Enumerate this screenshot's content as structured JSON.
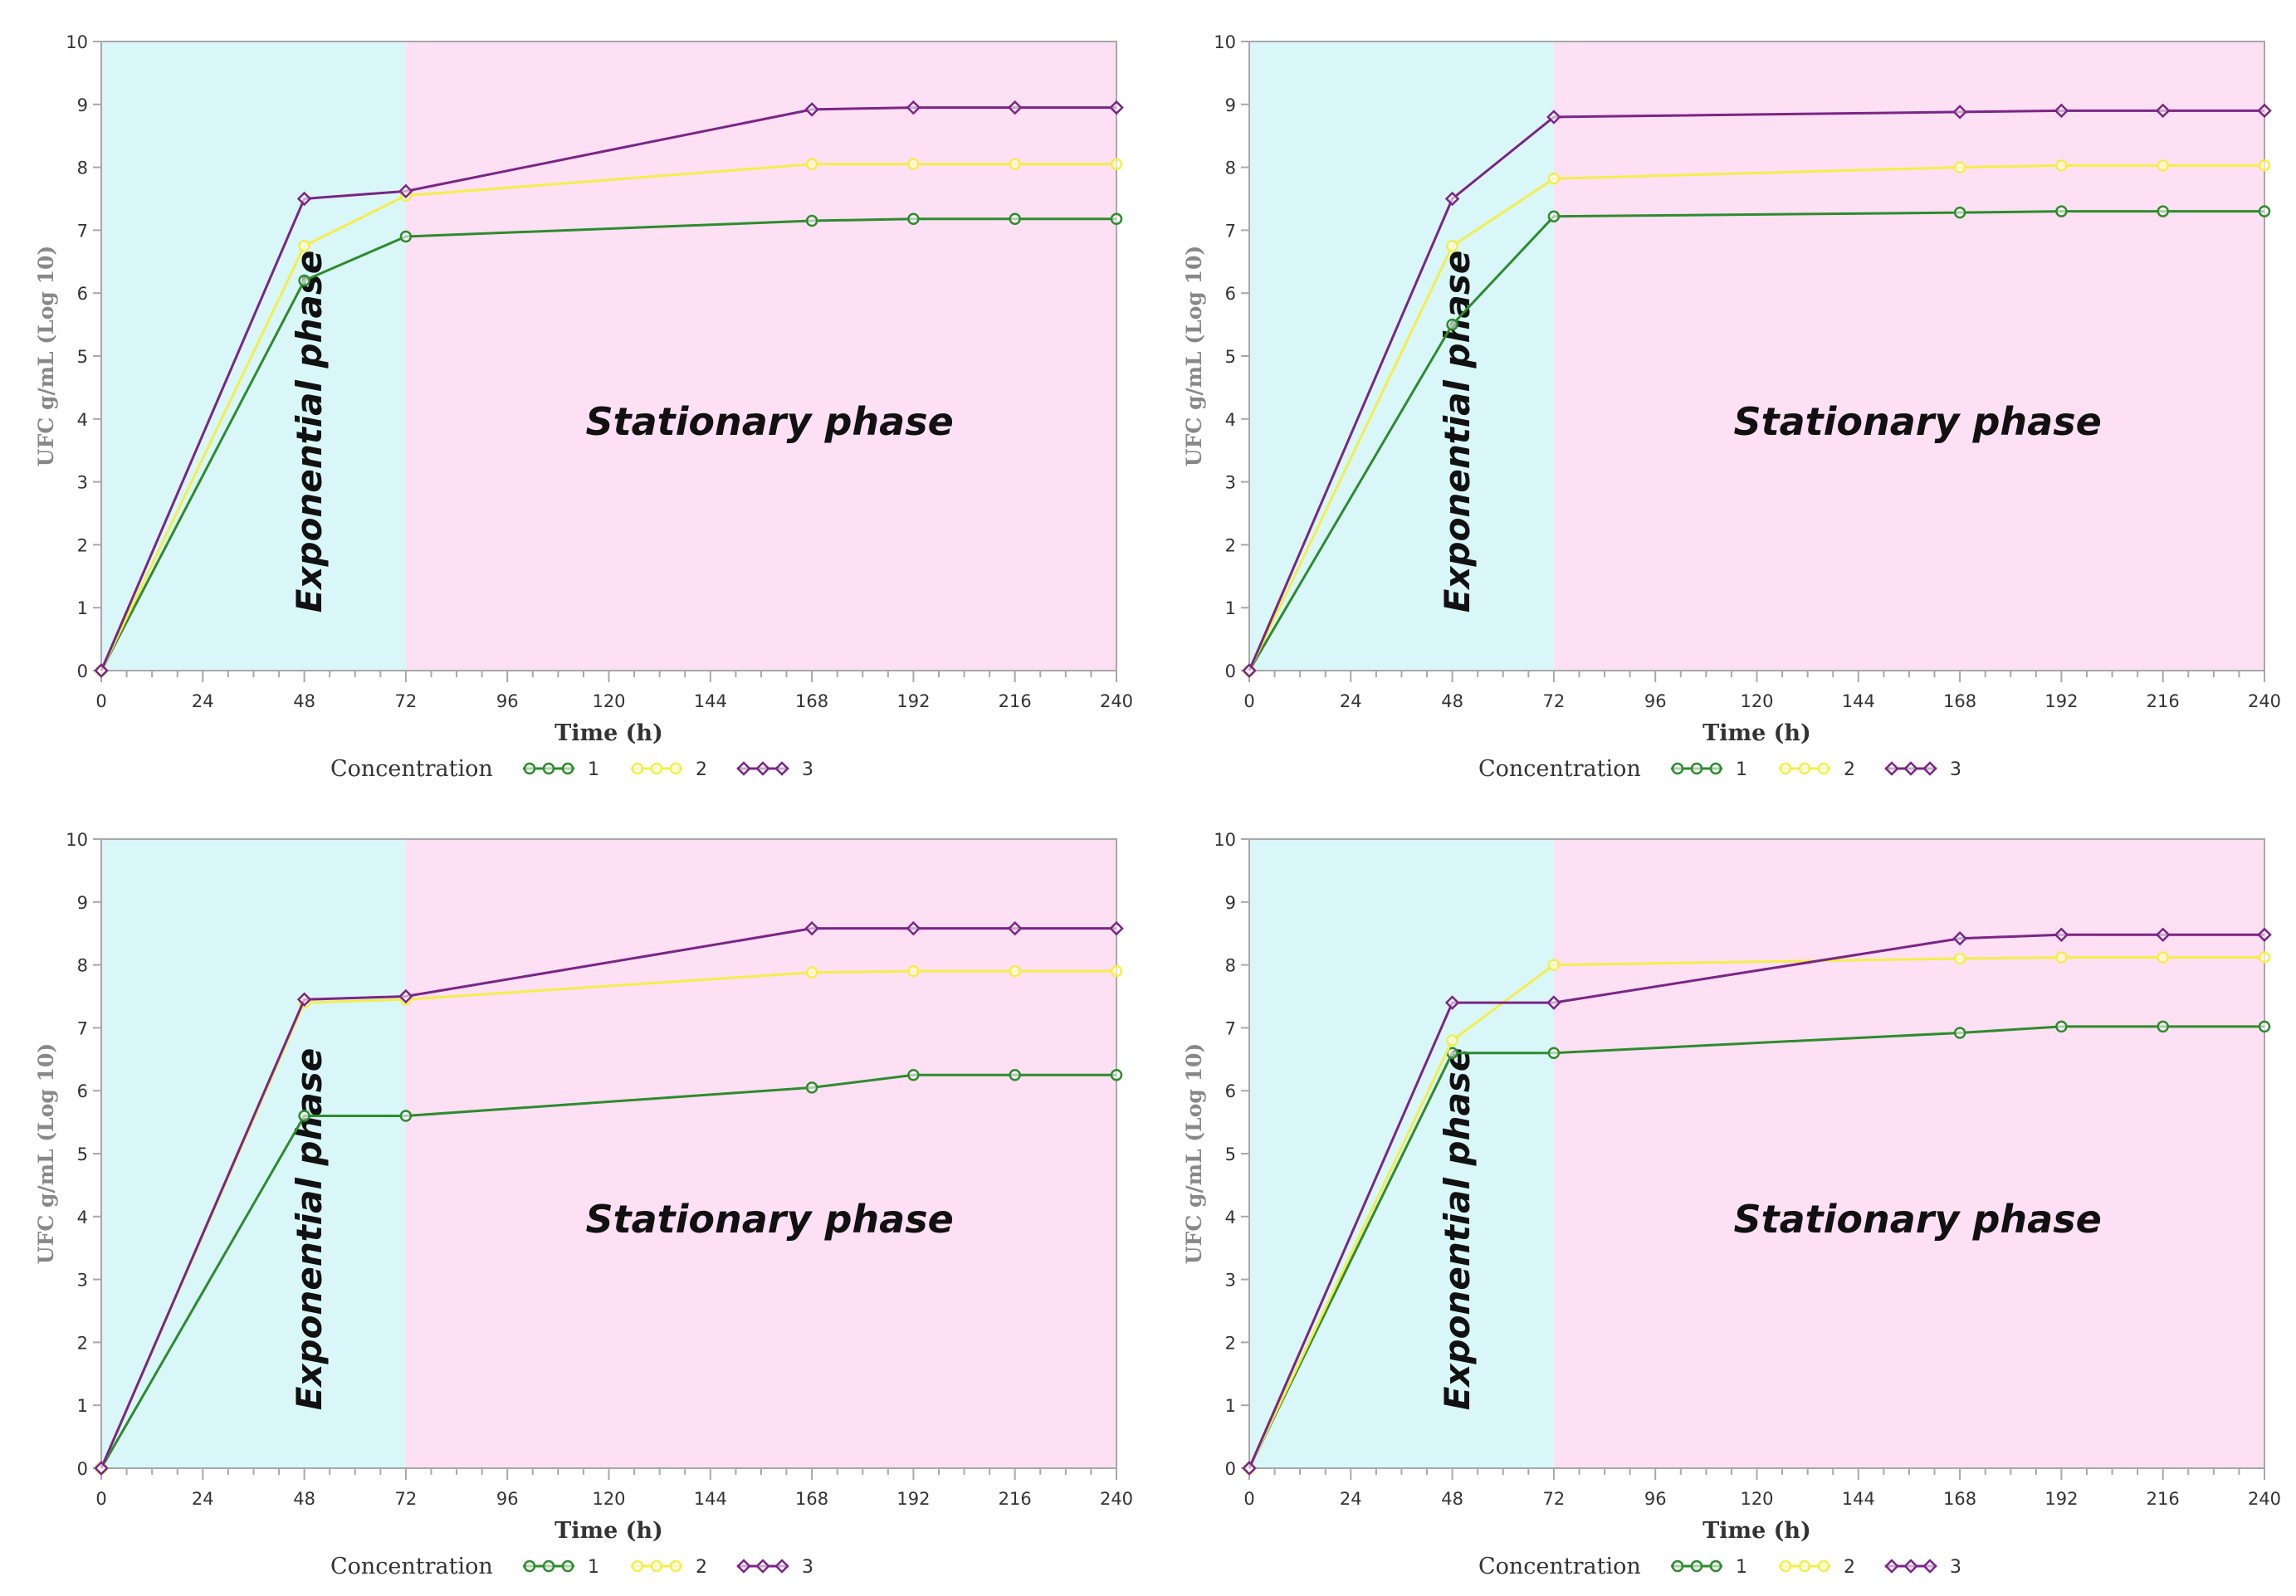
{
  "colors": {
    "exponential_bg": "#d9f6f9",
    "stationary_bg": "#fde0f3",
    "axis": "#a8a8a8",
    "concentration_1": "#2e8b2e",
    "concentration_2": "#f4ee4a",
    "concentration_3": "#7a2585"
  },
  "chart_data": [
    {
      "type": "line",
      "xlabel": "Time (h)",
      "ylabel": "UFC g/mL (Log 10)",
      "xlim": [
        0,
        240
      ],
      "ylim": [
        0,
        10
      ],
      "x_ticks": [
        0,
        24,
        48,
        72,
        96,
        120,
        144,
        168,
        192,
        216,
        240
      ],
      "y_ticks": [
        0,
        1,
        2,
        3,
        4,
        5,
        6,
        7,
        8,
        9,
        10
      ],
      "phases": [
        {
          "label": "Exponential phase",
          "from": 0,
          "to": 72
        },
        {
          "label": "Stationary phase",
          "from": 72,
          "to": 240
        }
      ],
      "legend_title": "Concentration",
      "series": [
        {
          "name": "1",
          "x": [
            0,
            48,
            72,
            168,
            192,
            216,
            240
          ],
          "values": [
            0,
            6.2,
            6.9,
            7.15,
            7.18,
            7.18,
            7.18
          ]
        },
        {
          "name": "2",
          "x": [
            0,
            48,
            72,
            168,
            192,
            216,
            240
          ],
          "values": [
            0,
            6.75,
            7.55,
            8.05,
            8.05,
            8.05,
            8.05
          ]
        },
        {
          "name": "3",
          "x": [
            0,
            48,
            72,
            168,
            192,
            216,
            240
          ],
          "values": [
            0,
            7.5,
            7.62,
            8.92,
            8.95,
            8.95,
            8.95
          ]
        }
      ]
    },
    {
      "type": "line",
      "xlabel": "Time (h)",
      "ylabel": "UFC g/mL (Log 10)",
      "xlim": [
        0,
        240
      ],
      "ylim": [
        0,
        10
      ],
      "x_ticks": [
        0,
        24,
        48,
        72,
        96,
        120,
        144,
        168,
        192,
        216,
        240
      ],
      "y_ticks": [
        0,
        1,
        2,
        3,
        4,
        5,
        6,
        7,
        8,
        9,
        10
      ],
      "phases": [
        {
          "label": "Exponential phase",
          "from": 0,
          "to": 72
        },
        {
          "label": "Stationary phase",
          "from": 72,
          "to": 240
        }
      ],
      "legend_title": "Concentration",
      "series": [
        {
          "name": "1",
          "x": [
            0,
            48,
            72,
            168,
            192,
            216,
            240
          ],
          "values": [
            0,
            5.5,
            7.22,
            7.28,
            7.3,
            7.3,
            7.3
          ]
        },
        {
          "name": "2",
          "x": [
            0,
            48,
            72,
            168,
            192,
            216,
            240
          ],
          "values": [
            0,
            6.75,
            7.82,
            8.0,
            8.03,
            8.03,
            8.03
          ]
        },
        {
          "name": "3",
          "x": [
            0,
            48,
            72,
            168,
            192,
            216,
            240
          ],
          "values": [
            0,
            7.5,
            8.8,
            8.88,
            8.9,
            8.9,
            8.9
          ]
        }
      ]
    },
    {
      "type": "line",
      "xlabel": "Time (h)",
      "ylabel": "UFC g/mL (Log 10)",
      "xlim": [
        0,
        240
      ],
      "ylim": [
        0,
        10
      ],
      "x_ticks": [
        0,
        24,
        48,
        72,
        96,
        120,
        144,
        168,
        192,
        216,
        240
      ],
      "y_ticks": [
        0,
        1,
        2,
        3,
        4,
        5,
        6,
        7,
        8,
        9,
        10
      ],
      "phases": [
        {
          "label": "Exponential phase",
          "from": 0,
          "to": 72
        },
        {
          "label": "Stationary phase",
          "from": 72,
          "to": 240
        }
      ],
      "legend_title": "Concentration",
      "series": [
        {
          "name": "1",
          "x": [
            0,
            48,
            72,
            168,
            192,
            216,
            240
          ],
          "values": [
            0,
            5.6,
            5.6,
            6.05,
            6.25,
            6.25,
            6.25
          ]
        },
        {
          "name": "2",
          "x": [
            0,
            48,
            72,
            168,
            192,
            216,
            240
          ],
          "values": [
            0,
            7.4,
            7.45,
            7.88,
            7.9,
            7.9,
            7.9
          ]
        },
        {
          "name": "3",
          "x": [
            0,
            48,
            72,
            168,
            192,
            216,
            240
          ],
          "values": [
            0,
            7.45,
            7.5,
            8.58,
            8.58,
            8.58,
            8.58
          ]
        }
      ]
    },
    {
      "type": "line",
      "xlabel": "Time (h)",
      "ylabel": "UFC g/mL (Log 10)",
      "xlim": [
        0,
        240
      ],
      "ylim": [
        0,
        10
      ],
      "x_ticks": [
        0,
        24,
        48,
        72,
        96,
        120,
        144,
        168,
        192,
        216,
        240
      ],
      "y_ticks": [
        0,
        1,
        2,
        3,
        4,
        5,
        6,
        7,
        8,
        9,
        10
      ],
      "phases": [
        {
          "label": "Exponential phase",
          "from": 0,
          "to": 72
        },
        {
          "label": "Stationary phase",
          "from": 72,
          "to": 240
        }
      ],
      "legend_title": "Concentration",
      "series": [
        {
          "name": "1",
          "x": [
            0,
            48,
            72,
            168,
            192,
            216,
            240
          ],
          "values": [
            0,
            6.6,
            6.6,
            6.92,
            7.02,
            7.02,
            7.02
          ]
        },
        {
          "name": "2",
          "x": [
            0,
            48,
            72,
            168,
            192,
            216,
            240
          ],
          "values": [
            0,
            6.8,
            8.0,
            8.1,
            8.12,
            8.12,
            8.12
          ]
        },
        {
          "name": "3",
          "x": [
            0,
            48,
            72,
            168,
            192,
            216,
            240
          ],
          "values": [
            0,
            7.4,
            7.4,
            8.42,
            8.48,
            8.48,
            8.48
          ]
        }
      ]
    }
  ]
}
